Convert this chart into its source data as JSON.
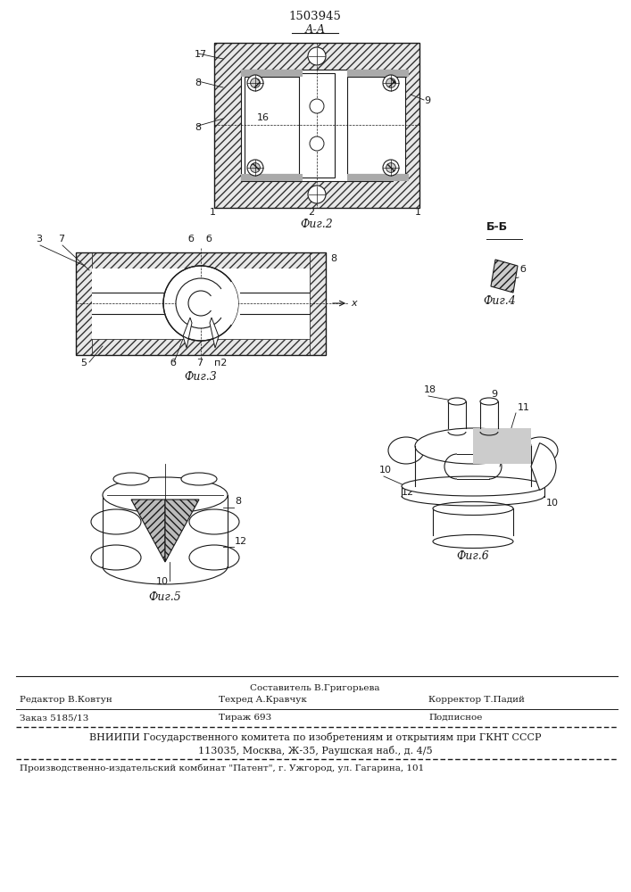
{
  "patent_number": "1503945",
  "background_color": "#ffffff",
  "line_color": "#1a1a1a",
  "fig_width": 7.07,
  "fig_height": 10.0,
  "section_label_AA": "А-А",
  "fig2_label": "Фиг.2",
  "fig3_label": "Фиг.3",
  "fig4_label": "Фиг.4",
  "fig5_label": "Фиг.5",
  "fig6_label": "Фиг.6",
  "footer_line1_left": "Редактор В.Ковтун",
  "footer_line1_center_top": "Составитель В.Григорьева",
  "footer_line1_center_bot": "Техред А.Кравчук",
  "footer_line1_right": "Корректор Т.Падий",
  "footer_line2_col1": "Заказ 5185/13",
  "footer_line2_col2": "Тираж 693",
  "footer_line2_col3": "Подписное",
  "footer_vniipи": "ВНИИПИ Государственного комитета по изобретениям и открытиям при ГКНТ СССР",
  "footer_addr": "113035, Москва, Ж-35, Раушская наб., д. 4/5",
  "footer_patent": "Производственно-издательский комбинат \"Патент\", г. Ужгород, ул. Гагарина, 101"
}
